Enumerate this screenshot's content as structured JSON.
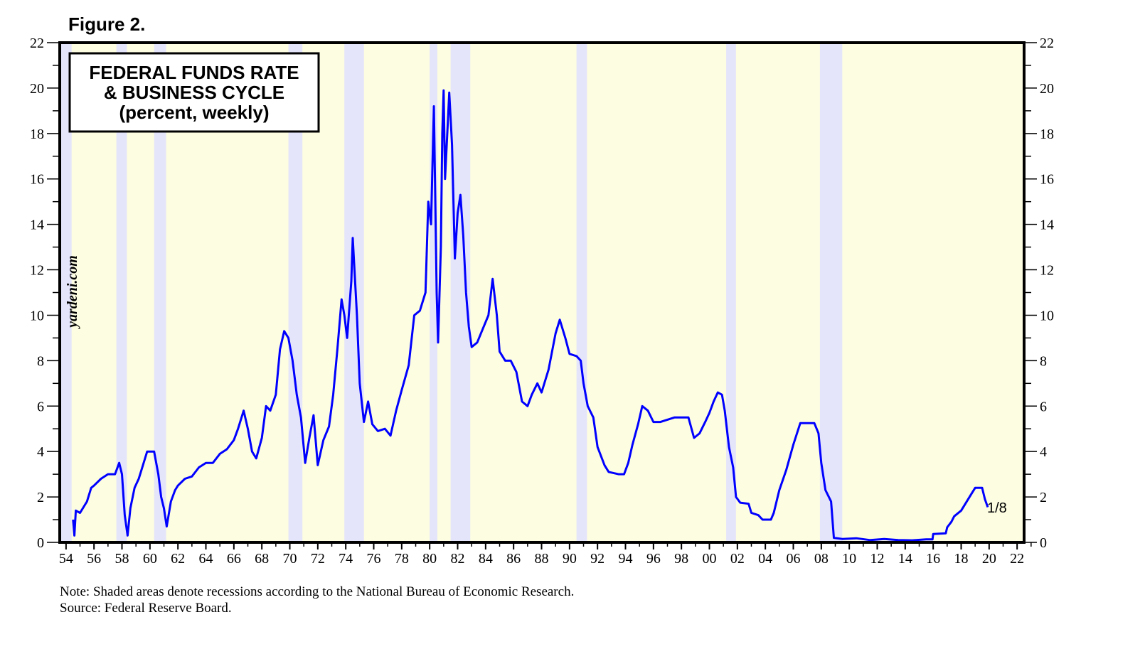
{
  "figure_label": "Figure 2.",
  "watermark": "yardeni.com",
  "notes": {
    "note": "Note: Shaded areas denote recessions according to the National Bureau of Economic Research.",
    "source": "Source: Federal Reserve Board."
  },
  "chart_data": {
    "type": "line",
    "title_lines": [
      "FEDERAL FUNDS RATE",
      "& BUSINESS CYCLE",
      "(percent, weekly)"
    ],
    "xlabel": "",
    "ylabel": "",
    "xlim": [
      1953.55,
      2022.5
    ],
    "ylim": [
      0,
      22
    ],
    "y_ticks": [
      0,
      2,
      4,
      6,
      8,
      10,
      12,
      14,
      16,
      18,
      20,
      22
    ],
    "x_ticks": [
      1954,
      1956,
      1958,
      1960,
      1962,
      1964,
      1966,
      1968,
      1970,
      1972,
      1974,
      1976,
      1978,
      1980,
      1982,
      1984,
      1986,
      1988,
      1990,
      1992,
      1994,
      1996,
      1998,
      2000,
      2002,
      2004,
      2006,
      2008,
      2010,
      2012,
      2014,
      2016,
      2018,
      2020,
      2022
    ],
    "x_tick_labels": [
      "54",
      "56",
      "58",
      "60",
      "62",
      "64",
      "66",
      "68",
      "70",
      "72",
      "74",
      "76",
      "78",
      "80",
      "82",
      "84",
      "86",
      "88",
      "90",
      "92",
      "94",
      "96",
      "98",
      "00",
      "02",
      "04",
      "06",
      "08",
      "10",
      "12",
      "14",
      "16",
      "18",
      "20",
      "22"
    ],
    "y_axis_both_sides": true,
    "grid": false,
    "end_label": "1/8",
    "colors": {
      "line": "#0000ff",
      "background": "#fdfde2",
      "recession": "#e4e4fa"
    },
    "recessions": [
      [
        1953.55,
        1954.4
      ],
      [
        1957.6,
        1958.35
      ],
      [
        1960.3,
        1961.15
      ],
      [
        1969.9,
        1970.9
      ],
      [
        1973.9,
        1975.3
      ],
      [
        1980.0,
        1980.55
      ],
      [
        1981.5,
        1982.9
      ],
      [
        1990.5,
        1991.25
      ],
      [
        2001.2,
        2001.9
      ],
      [
        2007.9,
        2009.5
      ]
    ],
    "series": [
      {
        "points": [
          [
            1954.5,
            1.0
          ],
          [
            1954.6,
            0.3
          ],
          [
            1954.7,
            1.4
          ],
          [
            1955.0,
            1.3
          ],
          [
            1955.5,
            1.8
          ],
          [
            1955.8,
            2.4
          ],
          [
            1956.0,
            2.5
          ],
          [
            1956.5,
            2.8
          ],
          [
            1957.0,
            3.0
          ],
          [
            1957.5,
            3.0
          ],
          [
            1957.8,
            3.5
          ],
          [
            1958.0,
            3.0
          ],
          [
            1958.2,
            1.2
          ],
          [
            1958.4,
            0.3
          ],
          [
            1958.6,
            1.5
          ],
          [
            1958.9,
            2.4
          ],
          [
            1959.2,
            2.8
          ],
          [
            1959.5,
            3.4
          ],
          [
            1959.8,
            4.0
          ],
          [
            1960.3,
            4.0
          ],
          [
            1960.6,
            3.0
          ],
          [
            1960.8,
            2.0
          ],
          [
            1961.0,
            1.5
          ],
          [
            1961.2,
            0.7
          ],
          [
            1961.5,
            1.8
          ],
          [
            1961.8,
            2.3
          ],
          [
            1962.0,
            2.5
          ],
          [
            1962.5,
            2.8
          ],
          [
            1963.0,
            2.9
          ],
          [
            1963.5,
            3.3
          ],
          [
            1964.0,
            3.5
          ],
          [
            1964.5,
            3.5
          ],
          [
            1965.0,
            3.9
          ],
          [
            1965.5,
            4.1
          ],
          [
            1966.0,
            4.5
          ],
          [
            1966.3,
            5.0
          ],
          [
            1966.7,
            5.8
          ],
          [
            1967.0,
            5.0
          ],
          [
            1967.3,
            4.0
          ],
          [
            1967.6,
            3.7
          ],
          [
            1968.0,
            4.6
          ],
          [
            1968.3,
            6.0
          ],
          [
            1968.6,
            5.8
          ],
          [
            1969.0,
            6.5
          ],
          [
            1969.3,
            8.5
          ],
          [
            1969.6,
            9.3
          ],
          [
            1969.9,
            9.0
          ],
          [
            1970.2,
            8.0
          ],
          [
            1970.5,
            6.5
          ],
          [
            1970.8,
            5.5
          ],
          [
            1971.1,
            3.5
          ],
          [
            1971.4,
            4.6
          ],
          [
            1971.7,
            5.6
          ],
          [
            1972.0,
            3.4
          ],
          [
            1972.4,
            4.5
          ],
          [
            1972.8,
            5.1
          ],
          [
            1973.1,
            6.5
          ],
          [
            1973.4,
            8.5
          ],
          [
            1973.7,
            10.7
          ],
          [
            1973.9,
            10.0
          ],
          [
            1974.1,
            9.0
          ],
          [
            1974.4,
            11.5
          ],
          [
            1974.5,
            13.4
          ],
          [
            1974.8,
            10.0
          ],
          [
            1975.0,
            7.0
          ],
          [
            1975.3,
            5.3
          ],
          [
            1975.6,
            6.2
          ],
          [
            1975.9,
            5.2
          ],
          [
            1976.3,
            4.9
          ],
          [
            1976.8,
            5.0
          ],
          [
            1977.2,
            4.7
          ],
          [
            1977.6,
            5.8
          ],
          [
            1978.0,
            6.7
          ],
          [
            1978.5,
            7.8
          ],
          [
            1978.9,
            10.0
          ],
          [
            1979.3,
            10.2
          ],
          [
            1979.7,
            11.0
          ],
          [
            1979.9,
            15.0
          ],
          [
            1980.1,
            14.0
          ],
          [
            1980.3,
            19.2
          ],
          [
            1980.5,
            11.0
          ],
          [
            1980.6,
            8.8
          ],
          [
            1980.8,
            13.0
          ],
          [
            1980.9,
            18.0
          ],
          [
            1981.0,
            19.9
          ],
          [
            1981.1,
            16.0
          ],
          [
            1981.3,
            18.5
          ],
          [
            1981.4,
            19.8
          ],
          [
            1981.6,
            17.5
          ],
          [
            1981.8,
            12.5
          ],
          [
            1982.0,
            14.5
          ],
          [
            1982.2,
            15.3
          ],
          [
            1982.4,
            13.5
          ],
          [
            1982.6,
            11.0
          ],
          [
            1982.8,
            9.5
          ],
          [
            1983.0,
            8.6
          ],
          [
            1983.4,
            8.8
          ],
          [
            1983.8,
            9.4
          ],
          [
            1984.2,
            10.0
          ],
          [
            1984.5,
            11.6
          ],
          [
            1984.8,
            10.0
          ],
          [
            1985.0,
            8.4
          ],
          [
            1985.4,
            8.0
          ],
          [
            1985.8,
            8.0
          ],
          [
            1986.2,
            7.5
          ],
          [
            1986.6,
            6.2
          ],
          [
            1987.0,
            6.0
          ],
          [
            1987.3,
            6.5
          ],
          [
            1987.7,
            7.0
          ],
          [
            1988.0,
            6.6
          ],
          [
            1988.5,
            7.6
          ],
          [
            1989.0,
            9.2
          ],
          [
            1989.3,
            9.8
          ],
          [
            1989.7,
            9.0
          ],
          [
            1990.0,
            8.3
          ],
          [
            1990.5,
            8.2
          ],
          [
            1990.8,
            8.0
          ],
          [
            1991.0,
            7.0
          ],
          [
            1991.3,
            6.0
          ],
          [
            1991.7,
            5.5
          ],
          [
            1992.0,
            4.2
          ],
          [
            1992.5,
            3.4
          ],
          [
            1992.8,
            3.1
          ],
          [
            1993.5,
            3.0
          ],
          [
            1993.9,
            3.0
          ],
          [
            1994.2,
            3.5
          ],
          [
            1994.5,
            4.3
          ],
          [
            1994.9,
            5.2
          ],
          [
            1995.2,
            6.0
          ],
          [
            1995.6,
            5.8
          ],
          [
            1996.0,
            5.3
          ],
          [
            1996.5,
            5.3
          ],
          [
            1997.0,
            5.4
          ],
          [
            1997.5,
            5.5
          ],
          [
            1998.0,
            5.5
          ],
          [
            1998.5,
            5.5
          ],
          [
            1998.9,
            4.6
          ],
          [
            1999.3,
            4.8
          ],
          [
            1999.7,
            5.3
          ],
          [
            2000.0,
            5.7
          ],
          [
            2000.3,
            6.2
          ],
          [
            2000.6,
            6.6
          ],
          [
            2000.9,
            6.5
          ],
          [
            2001.1,
            5.8
          ],
          [
            2001.4,
            4.2
          ],
          [
            2001.7,
            3.3
          ],
          [
            2001.9,
            2.0
          ],
          [
            2002.2,
            1.75
          ],
          [
            2002.8,
            1.7
          ],
          [
            2003.0,
            1.3
          ],
          [
            2003.5,
            1.2
          ],
          [
            2003.8,
            1.0
          ],
          [
            2004.4,
            1.0
          ],
          [
            2004.6,
            1.3
          ],
          [
            2005.0,
            2.3
          ],
          [
            2005.5,
            3.2
          ],
          [
            2006.0,
            4.3
          ],
          [
            2006.5,
            5.25
          ],
          [
            2007.5,
            5.25
          ],
          [
            2007.8,
            4.8
          ],
          [
            2008.0,
            3.5
          ],
          [
            2008.3,
            2.3
          ],
          [
            2008.7,
            1.8
          ],
          [
            2008.9,
            0.2
          ],
          [
            2009.5,
            0.15
          ],
          [
            2010.5,
            0.18
          ],
          [
            2011.5,
            0.1
          ],
          [
            2012.5,
            0.15
          ],
          [
            2013.5,
            0.1
          ],
          [
            2014.5,
            0.09
          ],
          [
            2015.5,
            0.13
          ],
          [
            2015.95,
            0.13
          ],
          [
            2016.0,
            0.37
          ],
          [
            2016.9,
            0.4
          ],
          [
            2017.0,
            0.66
          ],
          [
            2017.3,
            0.9
          ],
          [
            2017.5,
            1.15
          ],
          [
            2018.0,
            1.4
          ],
          [
            2018.3,
            1.7
          ],
          [
            2018.5,
            1.9
          ],
          [
            2018.8,
            2.2
          ],
          [
            2019.0,
            2.4
          ],
          [
            2019.5,
            2.4
          ],
          [
            2019.7,
            1.9
          ],
          [
            2019.9,
            1.55
          ]
        ]
      }
    ]
  }
}
